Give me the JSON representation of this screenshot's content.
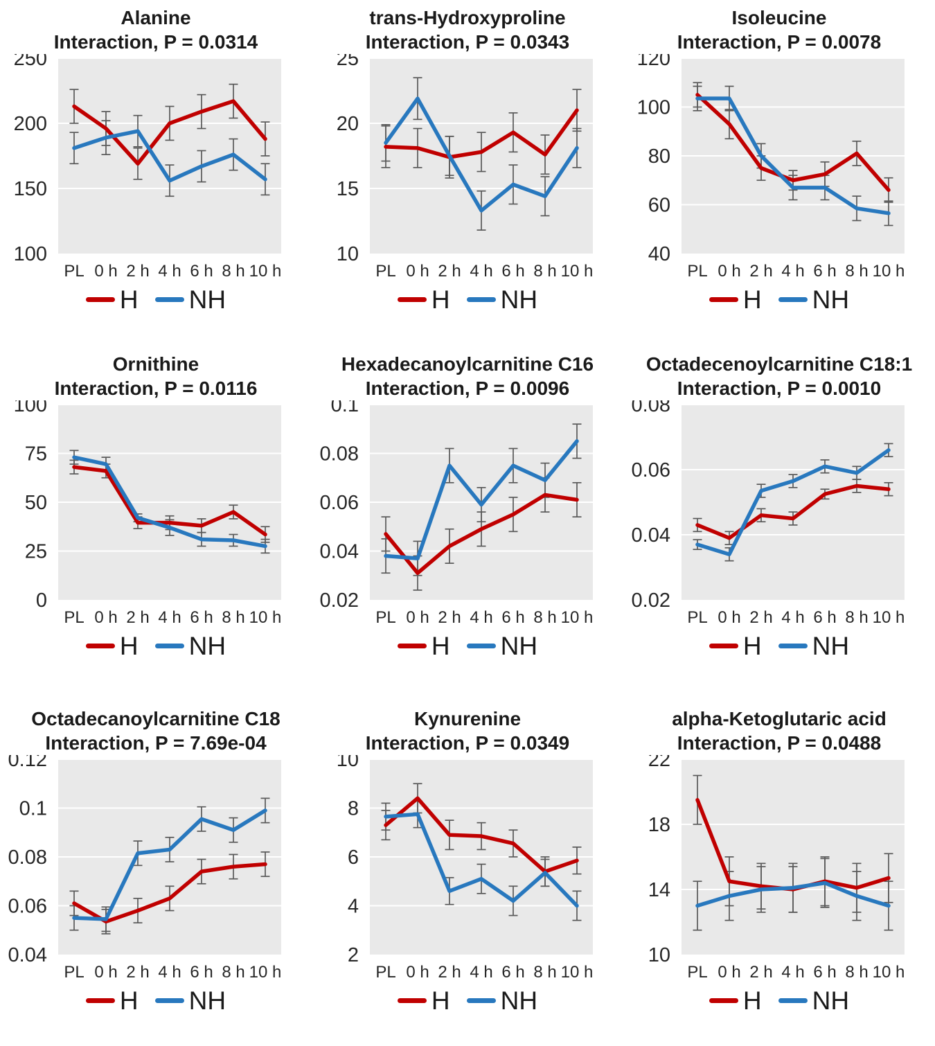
{
  "legend": {
    "h_label": "H",
    "nh_label": "NH"
  },
  "colors": {
    "h": "#C00000",
    "nh": "#2878BE",
    "plot_bg": "#E9E9E9",
    "gridline": "#FFFFFF",
    "error_bar": "#595959",
    "text": "#1A1A1A",
    "tick_text": "#262626"
  },
  "x_labels": [
    "PL",
    "0 h",
    "2 h",
    "4 h",
    "6 h",
    "8 h",
    "10 h"
  ],
  "chart_data": [
    {
      "type": "line",
      "title": "Alanine",
      "subtitle": "Interaction, P = 0.0314",
      "x": [
        "PL",
        "0 h",
        "2 h",
        "4 h",
        "6 h",
        "8 h",
        "10 h"
      ],
      "ylim": [
        100,
        250
      ],
      "yticks": [
        100,
        150,
        200,
        250
      ],
      "ytick_labels": [
        "100",
        "150",
        "200",
        "250"
      ],
      "grid": true,
      "legend_position": "bottom",
      "series": [
        {
          "name": "H",
          "values": [
            213,
            196,
            169,
            200,
            209,
            217,
            188
          ],
          "errors": [
            13,
            13,
            12,
            13,
            13,
            13,
            13
          ]
        },
        {
          "name": "NH",
          "values": [
            181,
            189,
            194,
            156,
            167,
            176,
            157
          ],
          "errors": [
            12,
            13,
            12,
            12,
            12,
            12,
            12
          ]
        }
      ]
    },
    {
      "type": "line",
      "title": "trans-Hydroxyproline",
      "subtitle": "Interaction, P = 0.0343",
      "x": [
        "PL",
        "0 h",
        "2 h",
        "4 h",
        "6 h",
        "8 h",
        "10 h"
      ],
      "ylim": [
        10,
        25
      ],
      "yticks": [
        10,
        15,
        20,
        25
      ],
      "ytick_labels": [
        "10",
        "15",
        "20",
        "25"
      ],
      "grid": true,
      "legend_position": "bottom",
      "series": [
        {
          "name": "H",
          "values": [
            18.2,
            18.1,
            17.4,
            17.8,
            19.3,
            17.6,
            21.0
          ],
          "errors": [
            1.6,
            1.5,
            1.6,
            1.5,
            1.5,
            1.5,
            1.6
          ]
        },
        {
          "name": "NH",
          "values": [
            18.5,
            21.9,
            17.5,
            13.3,
            15.3,
            14.4,
            18.1
          ],
          "errors": [
            1.4,
            1.6,
            1.5,
            1.5,
            1.5,
            1.5,
            1.5
          ]
        }
      ]
    },
    {
      "type": "line",
      "title": "Isoleucine",
      "subtitle": "Interaction, P = 0.0078",
      "x": [
        "PL",
        "0 h",
        "2 h",
        "4 h",
        "6 h",
        "8 h",
        "10 h"
      ],
      "ylim": [
        40,
        120
      ],
      "yticks": [
        40,
        60,
        80,
        100,
        120
      ],
      "ytick_labels": [
        "40",
        "60",
        "80",
        "100",
        "120"
      ],
      "grid": true,
      "legend_position": "bottom",
      "series": [
        {
          "name": "H",
          "values": [
            105,
            93,
            75,
            70,
            72.5,
            81,
            66
          ],
          "errors": [
            5,
            6,
            5,
            4,
            5,
            5,
            5
          ]
        },
        {
          "name": "NH",
          "values": [
            103.5,
            103.5,
            80,
            67,
            67,
            58.5,
            56.5
          ],
          "errors": [
            5,
            5,
            5,
            5,
            5,
            5,
            5
          ]
        }
      ]
    },
    {
      "type": "line",
      "title": "Ornithine",
      "subtitle": "Interaction, P = 0.0116",
      "x": [
        "PL",
        "0 h",
        "2 h",
        "4 h",
        "6 h",
        "8 h",
        "10 h"
      ],
      "ylim": [
        0,
        100
      ],
      "yticks": [
        0,
        25,
        50,
        75,
        100
      ],
      "ytick_labels": [
        "0",
        "25",
        "50",
        "75",
        "100"
      ],
      "grid": true,
      "legend_position": "bottom",
      "series": [
        {
          "name": "H",
          "values": [
            68,
            66,
            39.5,
            39.5,
            38,
            45,
            33.5
          ],
          "errors": [
            3.5,
            3.5,
            3,
            3.5,
            3.5,
            3.5,
            4
          ]
        },
        {
          "name": "NH",
          "values": [
            73,
            69.5,
            42,
            37,
            31,
            30.5,
            27.5
          ],
          "errors": [
            3.5,
            3.5,
            2,
            4,
            3.5,
            3,
            3.5
          ]
        }
      ]
    },
    {
      "type": "line",
      "title": "Hexadecanoylcarnitine C16",
      "subtitle": "Interaction, P = 0.0096",
      "x": [
        "PL",
        "0 h",
        "2 h",
        "4 h",
        "6 h",
        "8 h",
        "10 h"
      ],
      "ylim": [
        0.02,
        0.1
      ],
      "yticks": [
        0.02,
        0.04,
        0.06,
        0.08,
        0.1
      ],
      "ytick_labels": [
        "0.02",
        "0.04",
        "0.06",
        "0.08",
        "0.1"
      ],
      "grid": true,
      "legend_position": "bottom",
      "series": [
        {
          "name": "H",
          "values": [
            0.047,
            0.031,
            0.042,
            0.049,
            0.055,
            0.063,
            0.061
          ],
          "errors": [
            0.007,
            0.007,
            0.007,
            0.007,
            0.007,
            0.007,
            0.007
          ]
        },
        {
          "name": "NH",
          "values": [
            0.038,
            0.037,
            0.075,
            0.059,
            0.075,
            0.069,
            0.085
          ],
          "errors": [
            0.007,
            0.007,
            0.007,
            0.007,
            0.007,
            0.007,
            0.007
          ]
        }
      ]
    },
    {
      "type": "line",
      "title": "Octadecenoylcarnitine C18:1",
      "subtitle": "Interaction, P = 0.0010",
      "x": [
        "PL",
        "0 h",
        "2 h",
        "4 h",
        "6 h",
        "8 h",
        "10 h"
      ],
      "ylim": [
        0.02,
        0.08
      ],
      "yticks": [
        0.02,
        0.04,
        0.06,
        0.08
      ],
      "ytick_labels": [
        "0.02",
        "0.04",
        "0.06",
        "0.08"
      ],
      "grid": true,
      "legend_position": "bottom",
      "series": [
        {
          "name": "H",
          "values": [
            0.043,
            0.039,
            0.046,
            0.045,
            0.0525,
            0.055,
            0.054
          ],
          "errors": [
            0.002,
            0.002,
            0.002,
            0.002,
            0.0015,
            0.002,
            0.002
          ]
        },
        {
          "name": "NH",
          "values": [
            0.037,
            0.034,
            0.0535,
            0.0565,
            0.061,
            0.059,
            0.066
          ],
          "errors": [
            0.0015,
            0.002,
            0.002,
            0.002,
            0.002,
            0.002,
            0.002
          ]
        }
      ]
    },
    {
      "type": "line",
      "title": "Octadecanoylcarnitine C18",
      "subtitle": "Interaction, P = 7.69e-04",
      "x": [
        "PL",
        "0 h",
        "2 h",
        "4 h",
        "6 h",
        "8 h",
        "10 h"
      ],
      "ylim": [
        0.04,
        0.12
      ],
      "yticks": [
        0.04,
        0.06,
        0.08,
        0.1,
        0.12
      ],
      "ytick_labels": [
        "0.04",
        "0.06",
        "0.08",
        "0.1",
        "0.12"
      ],
      "grid": true,
      "legend_position": "bottom",
      "series": [
        {
          "name": "H",
          "values": [
            0.061,
            0.0535,
            0.058,
            0.063,
            0.074,
            0.076,
            0.077
          ],
          "errors": [
            0.005,
            0.005,
            0.005,
            0.005,
            0.005,
            0.005,
            0.005
          ]
        },
        {
          "name": "NH",
          "values": [
            0.055,
            0.0545,
            0.0815,
            0.083,
            0.0955,
            0.091,
            0.099
          ],
          "errors": [
            0.005,
            0.005,
            0.005,
            0.005,
            0.005,
            0.005,
            0.005
          ]
        }
      ]
    },
    {
      "type": "line",
      "title": "Kynurenine",
      "subtitle": "Interaction, P = 0.0349",
      "x": [
        "PL",
        "0 h",
        "2 h",
        "4 h",
        "6 h",
        "8 h",
        "10 h"
      ],
      "ylim": [
        2,
        10
      ],
      "yticks": [
        2,
        4,
        6,
        8,
        10
      ],
      "ytick_labels": [
        "2",
        "4",
        "6",
        "8",
        "10"
      ],
      "grid": true,
      "legend_position": "bottom",
      "series": [
        {
          "name": "H",
          "values": [
            7.3,
            8.4,
            6.9,
            6.85,
            6.55,
            5.4,
            5.85
          ],
          "errors": [
            0.6,
            0.6,
            0.6,
            0.55,
            0.55,
            0.6,
            0.55
          ]
        },
        {
          "name": "NH",
          "values": [
            7.65,
            7.75,
            4.6,
            5.1,
            4.2,
            5.35,
            4.0
          ],
          "errors": [
            0.55,
            0.55,
            0.55,
            0.6,
            0.6,
            0.55,
            0.6
          ]
        }
      ]
    },
    {
      "type": "line",
      "title": "alpha-Ketoglutaric acid",
      "subtitle": "Interaction, P = 0.0488",
      "x": [
        "PL",
        "0 h",
        "2 h",
        "4 h",
        "6 h",
        "8 h",
        "10 h"
      ],
      "ylim": [
        10,
        22
      ],
      "yticks": [
        10,
        14,
        18,
        22
      ],
      "ytick_labels": [
        "10",
        "14",
        "18",
        "22"
      ],
      "grid": true,
      "legend_position": "bottom",
      "series": [
        {
          "name": "H",
          "values": [
            19.5,
            14.5,
            14.2,
            14.0,
            14.5,
            14.1,
            14.7
          ],
          "errors": [
            1.5,
            1.5,
            1.4,
            1.4,
            1.5,
            1.5,
            1.5
          ]
        },
        {
          "name": "NH",
          "values": [
            13.0,
            13.6,
            14.0,
            14.1,
            14.4,
            13.6,
            13.0
          ],
          "errors": [
            1.5,
            1.5,
            1.4,
            1.5,
            1.5,
            1.5,
            1.5
          ]
        }
      ]
    }
  ]
}
